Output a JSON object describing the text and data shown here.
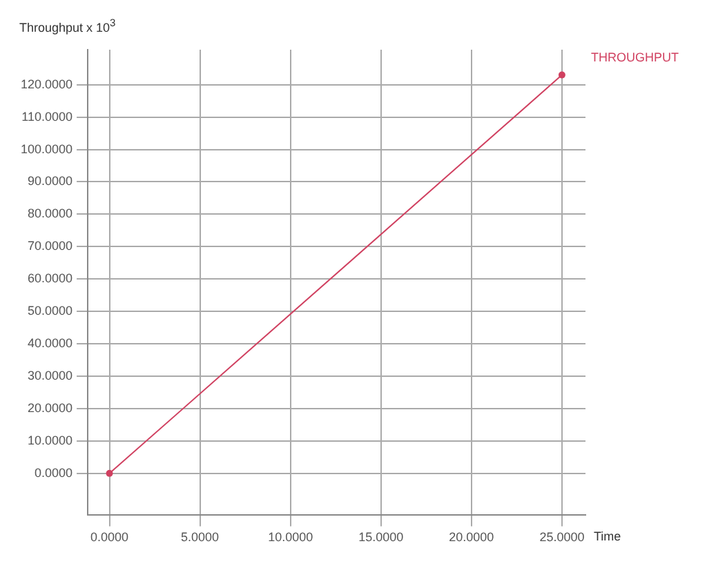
{
  "chart_data": {
    "type": "line",
    "ylabel": "Throughput x 10$^{3}$",
    "xlabel": "Time",
    "x": [
      0,
      25
    ],
    "series": [
      {
        "name": "THROUGHPUT",
        "color": "#d04060",
        "values": [
          0,
          123
        ]
      }
    ],
    "xlim": [
      -1.2,
      26.3
    ],
    "ylim": [
      -12.9,
      130.8
    ],
    "xticks": [
      {
        "value": 0,
        "label": "0.0000"
      },
      {
        "value": 5,
        "label": "5.0000"
      },
      {
        "value": 10,
        "label": "10.0000"
      },
      {
        "value": 15,
        "label": "15.0000"
      },
      {
        "value": 20,
        "label": "20.0000"
      },
      {
        "value": 25,
        "label": "25.0000"
      }
    ],
    "yticks": [
      {
        "value": 0,
        "label": "0.0000"
      },
      {
        "value": 10,
        "label": "10.0000"
      },
      {
        "value": 20,
        "label": "20.0000"
      },
      {
        "value": 30,
        "label": "30.0000"
      },
      {
        "value": 40,
        "label": "40.0000"
      },
      {
        "value": 50,
        "label": "50.0000"
      },
      {
        "value": 60,
        "label": "60.0000"
      },
      {
        "value": 70,
        "label": "70.0000"
      },
      {
        "value": 80,
        "label": "80.0000"
      },
      {
        "value": 90,
        "label": "90.0000"
      },
      {
        "value": 100,
        "label": "100.0000"
      },
      {
        "value": 110,
        "label": "110.0000"
      },
      {
        "value": 120,
        "label": "120.0000"
      }
    ],
    "grid": true,
    "marker": "circle",
    "line_style": "solid"
  }
}
